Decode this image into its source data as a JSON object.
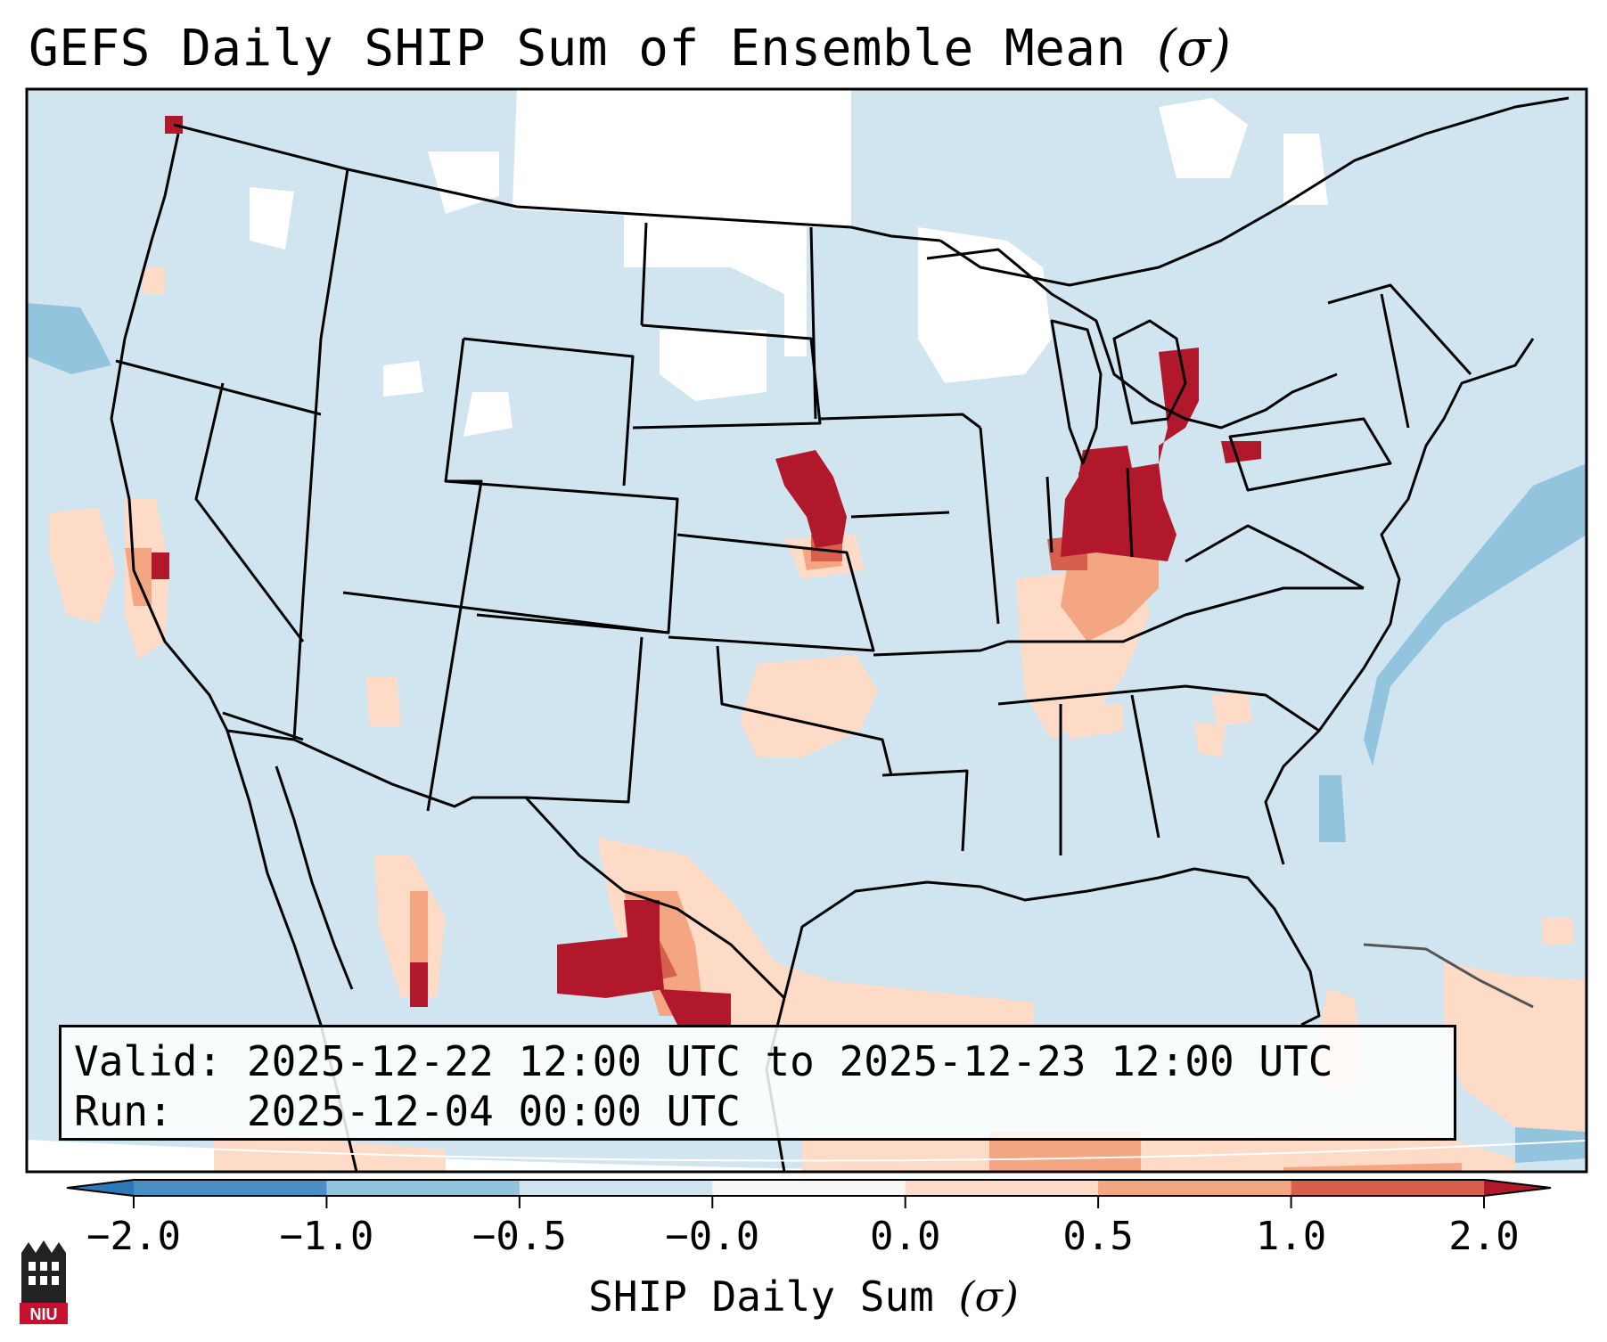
{
  "title": "GEFS Daily SHIP Sum of Ensemble Mean",
  "title_unit": "(σ)",
  "info": {
    "valid_label": "Valid:",
    "valid_value": "2025-12-22 12:00 UTC to 2025-12-23 12:00 UTC",
    "run_label": "Run:",
    "run_value": "2025-12-04 00:00 UTC"
  },
  "colorbar": {
    "title": "SHIP Daily Sum",
    "unit": "(σ)",
    "ticks": [
      "−2.0",
      "−1.0",
      "−0.5",
      "−0.0",
      "0.0",
      "0.5",
      "1.0",
      "2.0"
    ],
    "bin_colors": [
      "#4a8fc4",
      "#92c4de",
      "#d1e5f0",
      "#f7f7f7",
      "#fddbc7",
      "#f4a582",
      "#d6604d"
    ],
    "under_color": "#2f78b8",
    "over_color": "#b2182b"
  },
  "logo": {
    "text": "NIU",
    "icon": "niu-logo-icon"
  }
}
